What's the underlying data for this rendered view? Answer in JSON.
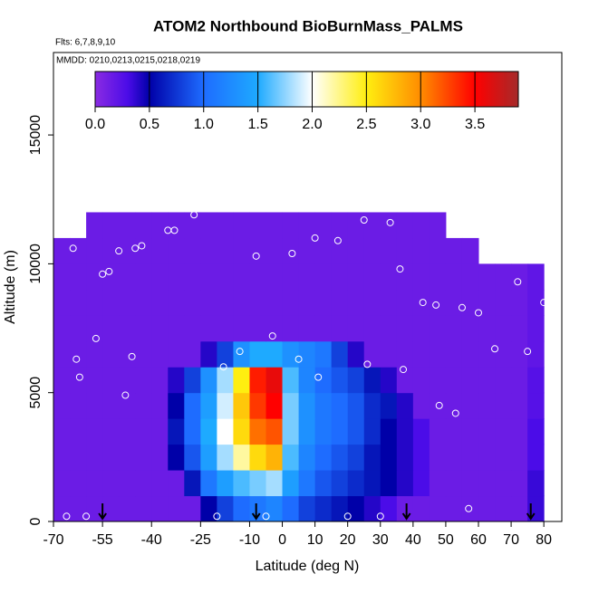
{
  "chart_data": {
    "type": "heatmap",
    "title": "ATOM2 Northbound BioBurnMass_PALMS",
    "subtitle": "Flts: 6,7,8,9,10",
    "annotation": "MMDD: 0210,0213,0215,0218,0219",
    "xlabel": "Latitude (deg N)",
    "ylabel": "Altitude (m)",
    "xlim": [
      -70,
      85.5
    ],
    "ylim": [
      0,
      18200
    ],
    "xticks": [
      -70,
      -55,
      -40,
      -25,
      -10,
      0,
      10,
      20,
      30,
      40,
      50,
      60,
      70,
      80
    ],
    "yticks": [
      0,
      5000,
      10000,
      15000
    ],
    "x_edges": [
      -70,
      -65,
      -60,
      -55,
      -50,
      -45,
      -40,
      -35,
      -30,
      -25,
      -20,
      -15,
      -10,
      -5,
      0,
      5,
      10,
      15,
      20,
      25,
      30,
      35,
      40,
      45,
      50,
      55,
      60,
      65,
      70,
      75,
      80
    ],
    "y_edges": [
      0,
      1000,
      2000,
      3000,
      4000,
      5000,
      6000,
      7000,
      8000,
      9000,
      10000,
      11000,
      12000
    ],
    "z": [
      [
        0.15,
        0.15,
        0.15,
        0.15,
        0.15,
        0.15,
        0.15,
        0.15,
        0.15,
        0.5,
        0.8,
        1.0,
        1.1,
        1.2,
        1.0,
        0.8,
        0.7,
        0.6,
        0.5,
        0.4,
        0.3,
        0.15,
        0.15,
        0.15,
        0.15,
        0.15,
        0.15,
        0.15,
        0.15,
        0.35
      ],
      [
        0.15,
        0.15,
        0.15,
        0.15,
        0.15,
        0.15,
        0.15,
        0.15,
        0.6,
        1.1,
        1.4,
        1.6,
        1.7,
        1.8,
        1.4,
        1.1,
        0.9,
        0.8,
        0.7,
        0.6,
        0.5,
        0.4,
        0.3,
        0.15,
        0.15,
        0.15,
        0.15,
        0.15,
        0.15,
        0.35
      ],
      [
        0.15,
        0.15,
        0.15,
        0.15,
        0.15,
        0.15,
        0.15,
        0.5,
        0.9,
        1.4,
        1.8,
        2.2,
        2.6,
        2.8,
        1.6,
        1.2,
        1.0,
        0.9,
        0.8,
        0.6,
        0.5,
        0.4,
        0.3,
        0.15,
        0.15,
        0.15,
        0.15,
        0.15,
        0.15,
        0.3
      ],
      [
        0.15,
        0.15,
        0.15,
        0.15,
        0.15,
        0.15,
        0.15,
        0.6,
        1.0,
        1.5,
        2.0,
        2.6,
        3.1,
        3.2,
        1.7,
        1.3,
        1.1,
        1.0,
        0.9,
        0.7,
        0.5,
        0.4,
        0.3,
        0.15,
        0.15,
        0.15,
        0.15,
        0.15,
        0.15,
        0.3
      ],
      [
        0.15,
        0.15,
        0.15,
        0.15,
        0.15,
        0.15,
        0.15,
        0.5,
        1.0,
        1.4,
        1.9,
        2.7,
        3.3,
        3.5,
        1.7,
        1.3,
        1.1,
        1.0,
        0.9,
        0.7,
        0.6,
        0.4,
        0.15,
        0.15,
        0.15,
        0.15,
        0.15,
        0.15,
        0.15,
        0.25
      ],
      [
        0.15,
        0.15,
        0.15,
        0.15,
        0.15,
        0.15,
        0.15,
        0.4,
        0.8,
        1.3,
        1.8,
        2.5,
        3.4,
        3.6,
        1.6,
        1.2,
        1.0,
        0.9,
        0.8,
        0.6,
        0.4,
        0.15,
        0.15,
        0.15,
        0.15,
        0.15,
        0.15,
        0.15,
        0.15,
        0.25
      ],
      [
        0.15,
        0.15,
        0.15,
        0.15,
        0.15,
        0.15,
        0.15,
        0.15,
        0.15,
        0.4,
        0.8,
        1.3,
        1.5,
        1.5,
        1.3,
        1.2,
        1.1,
        0.8,
        0.4,
        0.15,
        0.15,
        0.15,
        0.15,
        0.15,
        0.15,
        0.15,
        0.15,
        0.15,
        0.15,
        0.2
      ],
      [
        0.15,
        0.15,
        0.15,
        0.15,
        0.15,
        0.15,
        0.15,
        0.15,
        0.15,
        0.15,
        0.15,
        0.15,
        0.15,
        0.15,
        0.15,
        0.15,
        0.15,
        0.15,
        0.15,
        0.15,
        0.15,
        0.15,
        0.15,
        0.15,
        0.15,
        0.15,
        0.15,
        0.15,
        0.15,
        0.2
      ],
      [
        0.15,
        0.15,
        0.15,
        0.15,
        0.15,
        0.15,
        0.15,
        0.15,
        0.15,
        0.15,
        0.15,
        0.15,
        0.15,
        0.15,
        0.15,
        0.15,
        0.15,
        0.15,
        0.15,
        0.15,
        0.15,
        0.15,
        0.15,
        0.15,
        0.15,
        0.15,
        0.15,
        0.15,
        0.15,
        0.2
      ],
      [
        0.15,
        0.15,
        0.15,
        0.15,
        0.15,
        0.15,
        0.15,
        0.15,
        0.15,
        0.15,
        0.15,
        0.15,
        0.15,
        0.15,
        0.15,
        0.15,
        0.15,
        0.15,
        0.15,
        0.15,
        0.15,
        0.15,
        0.15,
        0.15,
        0.15,
        0.15,
        0.15,
        0.15,
        0.15,
        0.2
      ],
      [
        0.15,
        0.15,
        0.15,
        0.15,
        0.15,
        0.15,
        0.15,
        0.15,
        0.15,
        0.15,
        0.15,
        0.15,
        0.15,
        0.15,
        0.15,
        0.15,
        0.15,
        0.15,
        0.15,
        0.15,
        0.15,
        0.15,
        0.15,
        0.15,
        0.15,
        0.15,
        null,
        null,
        null,
        null
      ],
      [
        null,
        null,
        0.15,
        0.15,
        0.15,
        0.15,
        0.15,
        0.15,
        0.15,
        0.15,
        0.15,
        0.15,
        0.15,
        0.15,
        0.15,
        0.15,
        0.15,
        0.15,
        0.15,
        0.15,
        0.15,
        0.15,
        0.15,
        0.15,
        null,
        null,
        null,
        null,
        null,
        null
      ]
    ],
    "points": {
      "x": [
        -64,
        -63,
        -62,
        -57,
        -55,
        -53,
        -50,
        -45,
        -43,
        -35,
        -33,
        -27,
        -18,
        -13,
        -8,
        -3,
        3,
        10,
        17,
        25,
        33,
        36,
        43,
        47,
        55,
        60,
        65,
        72,
        75,
        80,
        -46,
        -48,
        5,
        11,
        26,
        37,
        48,
        53,
        -66,
        -60,
        -20,
        -5,
        20,
        30,
        57
      ],
      "y": [
        10600,
        6300,
        5600,
        7100,
        9600,
        9700,
        10500,
        10600,
        10700,
        11300,
        11300,
        11900,
        6000,
        6600,
        10300,
        7200,
        10400,
        11000,
        10900,
        11700,
        11600,
        9800,
        8500,
        8400,
        8300,
        8100,
        6700,
        9300,
        6600,
        8500,
        6400,
        4900,
        6300,
        5600,
        6100,
        5900,
        4500,
        4200,
        200,
        200,
        200,
        200,
        200,
        200,
        500
      ]
    },
    "arrows": [
      -55,
      -8,
      38,
      76
    ],
    "colorbar": {
      "lim": [
        0,
        3.9
      ],
      "ticks": [
        {
          "value": 0,
          "label": "0.0"
        },
        0.5,
        {
          "value": 1,
          "label": "1.0"
        },
        1.5,
        {
          "value": 2,
          "label": "2.0"
        },
        2.5,
        {
          "value": 3,
          "label": "3.0"
        },
        3.5
      ],
      "stops": [
        [
          0,
          "#8a2be2"
        ],
        [
          0.3,
          "#4b0ce8"
        ],
        [
          0.5,
          "#0000a8"
        ],
        [
          1.0,
          "#1e6cff"
        ],
        [
          1.5,
          "#1eaaff"
        ],
        [
          2.0,
          "#ffffff"
        ],
        [
          2.5,
          "#ffee10"
        ],
        [
          3.0,
          "#ff8c00"
        ],
        [
          3.5,
          "#ff0000"
        ],
        [
          3.9,
          "#a52a2a"
        ]
      ]
    }
  }
}
